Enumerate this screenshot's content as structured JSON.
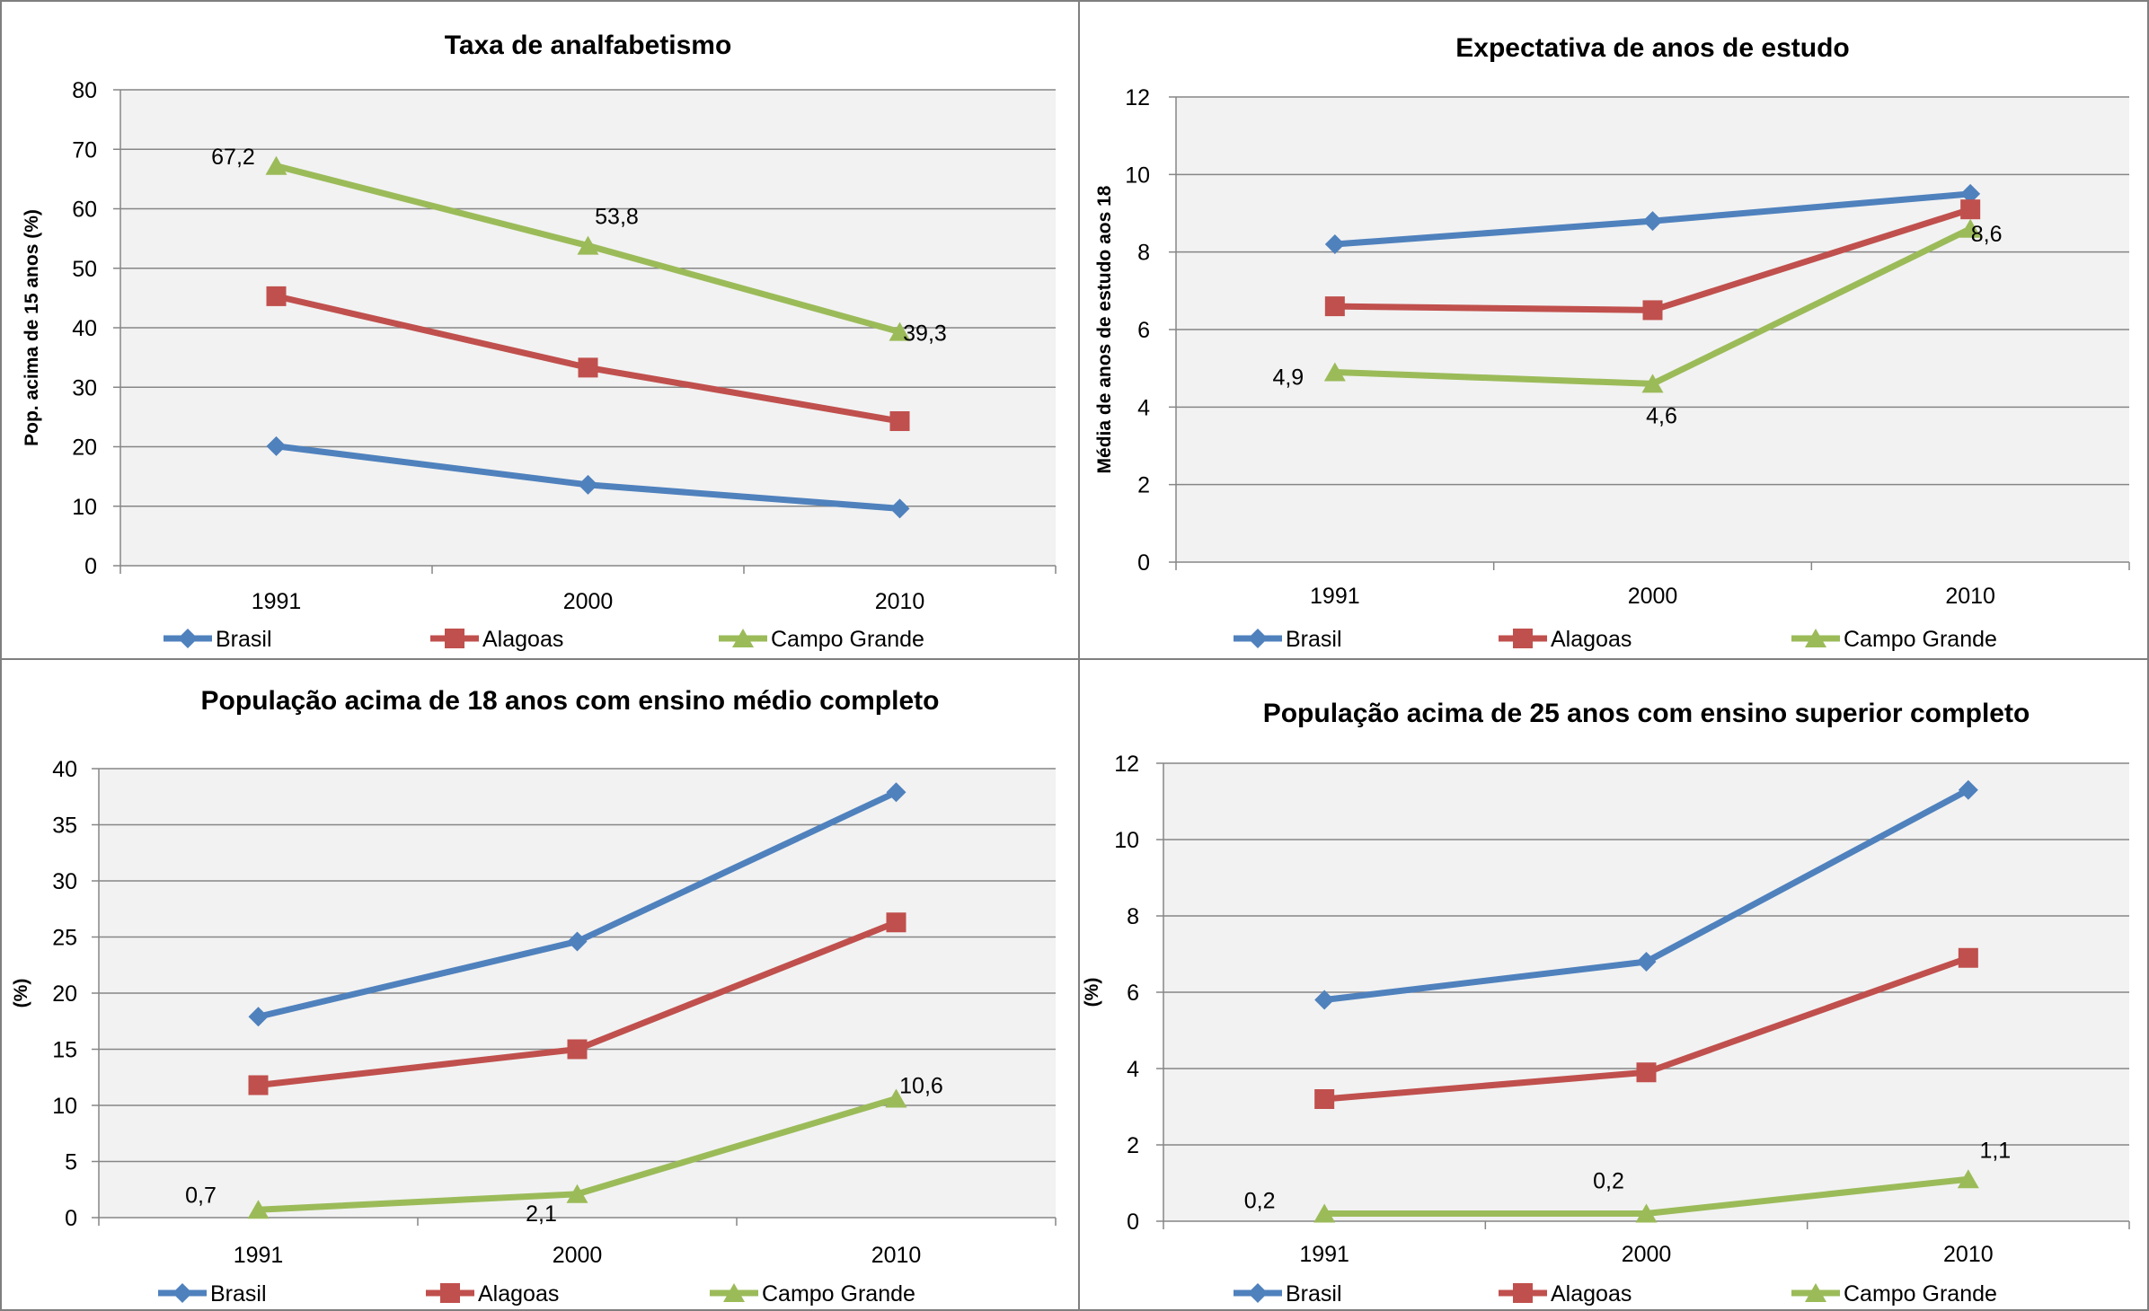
{
  "legend_labels": [
    "Brasil",
    "Alagoas",
    "Campo Grande"
  ],
  "series_colors": [
    "#4F81BD",
    "#C0504D",
    "#9BBB59"
  ],
  "series_markers": [
    "diamond",
    "square",
    "triangle"
  ],
  "chart_data": [
    {
      "type": "line",
      "title": "Taxa de analfabetismo",
      "xlabel": "",
      "ylabel": "Pop. acima de 15 anos (%)",
      "categories": [
        "1991",
        "2000",
        "2010"
      ],
      "ylim": [
        0,
        80
      ],
      "yticks": [
        "0",
        "10",
        "20",
        "30",
        "40",
        "50",
        "60",
        "70",
        "80"
      ],
      "grid": true,
      "legend_position": "bottom",
      "series": [
        {
          "name": "Brasil",
          "values": [
            20.1,
            13.6,
            9.6
          ]
        },
        {
          "name": "Alagoas",
          "values": [
            45.3,
            33.3,
            24.3
          ]
        },
        {
          "name": "Campo Grande",
          "values": [
            67.2,
            53.8,
            39.3
          ]
        }
      ],
      "data_labels": [
        {
          "series": 2,
          "point": 0,
          "text": "67,2"
        },
        {
          "series": 2,
          "point": 1,
          "text": "53,8"
        },
        {
          "series": 2,
          "point": 2,
          "text": "39,3"
        }
      ]
    },
    {
      "type": "line",
      "title": "Expectativa de anos de estudo",
      "xlabel": "",
      "ylabel": "Média de anos de estudo aos 18",
      "categories": [
        "1991",
        "2000",
        "2010"
      ],
      "ylim": [
        0,
        12
      ],
      "yticks": [
        "0",
        "2",
        "4",
        "6",
        "8",
        "10",
        "12"
      ],
      "grid": true,
      "legend_position": "bottom",
      "series": [
        {
          "name": "Brasil",
          "values": [
            8.2,
            8.8,
            9.5
          ]
        },
        {
          "name": "Alagoas",
          "values": [
            6.6,
            6.5,
            9.1
          ]
        },
        {
          "name": "Campo Grande",
          "values": [
            4.9,
            4.6,
            8.6
          ]
        }
      ],
      "data_labels": [
        {
          "series": 2,
          "point": 0,
          "text": "4,9"
        },
        {
          "series": 2,
          "point": 1,
          "text": "4,6"
        },
        {
          "series": 2,
          "point": 2,
          "text": "8,6"
        }
      ]
    },
    {
      "type": "line",
      "title": "População acima de 18 anos com ensino médio completo",
      "xlabel": "",
      "ylabel": "(%)",
      "categories": [
        "1991",
        "2000",
        "2010"
      ],
      "ylim": [
        0,
        40
      ],
      "yticks": [
        "0",
        "5",
        "10",
        "15",
        "20",
        "25",
        "30",
        "35",
        "40"
      ],
      "grid": true,
      "legend_position": "bottom",
      "series": [
        {
          "name": "Brasil",
          "values": [
            17.9,
            24.6,
            37.9
          ]
        },
        {
          "name": "Alagoas",
          "values": [
            11.8,
            15.0,
            26.3
          ]
        },
        {
          "name": "Campo Grande",
          "values": [
            0.7,
            2.1,
            10.6
          ]
        }
      ],
      "data_labels": [
        {
          "series": 2,
          "point": 0,
          "text": "0,7"
        },
        {
          "series": 2,
          "point": 1,
          "text": "2,1"
        },
        {
          "series": 2,
          "point": 2,
          "text": "10,6"
        }
      ]
    },
    {
      "type": "line",
      "title": "População acima de 25 anos com ensino superior completo",
      "xlabel": "",
      "ylabel": "(%)",
      "categories": [
        "1991",
        "2000",
        "2010"
      ],
      "ylim": [
        0,
        12
      ],
      "yticks": [
        "0",
        "2",
        "4",
        "6",
        "8",
        "10",
        "12"
      ],
      "grid": true,
      "legend_position": "bottom",
      "series": [
        {
          "name": "Brasil",
          "values": [
            5.8,
            6.8,
            11.3
          ]
        },
        {
          "name": "Alagoas",
          "values": [
            3.2,
            3.9,
            6.9
          ]
        },
        {
          "name": "Campo Grande",
          "values": [
            0.2,
            0.2,
            1.1
          ]
        }
      ],
      "data_labels": [
        {
          "series": 2,
          "point": 0,
          "text": "0,2"
        },
        {
          "series": 2,
          "point": 1,
          "text": "0,2"
        },
        {
          "series": 2,
          "point": 2,
          "text": "1,1"
        }
      ]
    }
  ]
}
